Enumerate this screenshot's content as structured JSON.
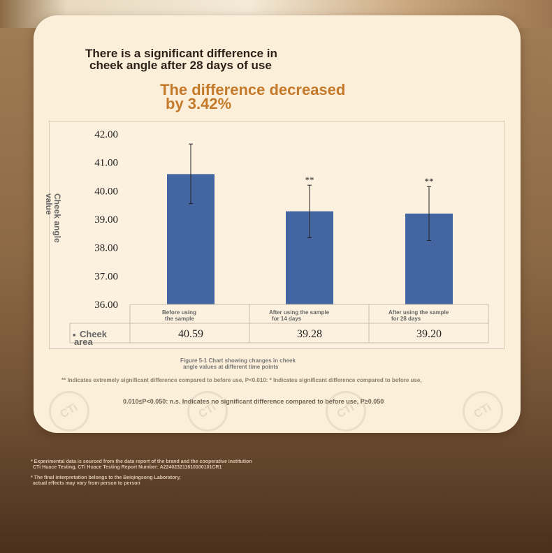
{
  "headline": {
    "line1": "There is a significant difference in",
    "line2": "cheek angle after 28 days of use"
  },
  "highlight": {
    "line1": "The difference decreased",
    "line2": "by 3.42%"
  },
  "colors": {
    "bar": "#4365a2",
    "highlight": "#c47a2a",
    "card": "#fcefd9"
  },
  "chart_data": {
    "type": "bar",
    "categories": [
      [
        "Before using",
        "the sample"
      ],
      [
        "After using the sample",
        "for 14 days"
      ],
      [
        "After using the sample",
        "for 28 days"
      ]
    ],
    "series": [
      {
        "values": [
          40.59,
          39.28,
          39.2
        ]
      }
    ],
    "value_labels": [
      "40.59",
      "39.28",
      "39.20"
    ],
    "error_bars": [
      [
        39.55,
        41.65
      ],
      [
        38.35,
        40.2
      ],
      [
        38.25,
        40.15
      ]
    ],
    "significance": [
      "",
      "**",
      "**"
    ],
    "ylabel": [
      "Cheek angle",
      "value"
    ],
    "yticks": [
      "42.00",
      "41.00",
      "40.00",
      "39.00",
      "38.00",
      "37.00",
      "36.00"
    ],
    "ylim": [
      36,
      42
    ],
    "table_row_label": [
      "Cheek",
      "area"
    ],
    "table_row_marker": "■"
  },
  "caption": {
    "line1": "Figure 5-1 Chart showing changes in cheek",
    "line2": "angle values at different time points"
  },
  "notes": {
    "line1": "** Indicates extremely significant difference compared to before use, P<0.010: * Indicates significant difference compared to before use,",
    "line2": "0.010≤P<0.050: n.s. Indicates no significant difference compared to before use, P≥0.050"
  },
  "watermark_text": "CTi",
  "footnotes": {
    "f1_line1": "* Experimental data is sourced from the data report of the brand and the cooperative institution",
    "f1_line2": "CTi Huace Testing, CTi Huace Testing Report Number: A2240232116101001​01CR1",
    "f2_line1": "* The final interpretation belongs to the Beiqingsong Laboratory,",
    "f2_line2": "actual effects may vary from person to person"
  }
}
